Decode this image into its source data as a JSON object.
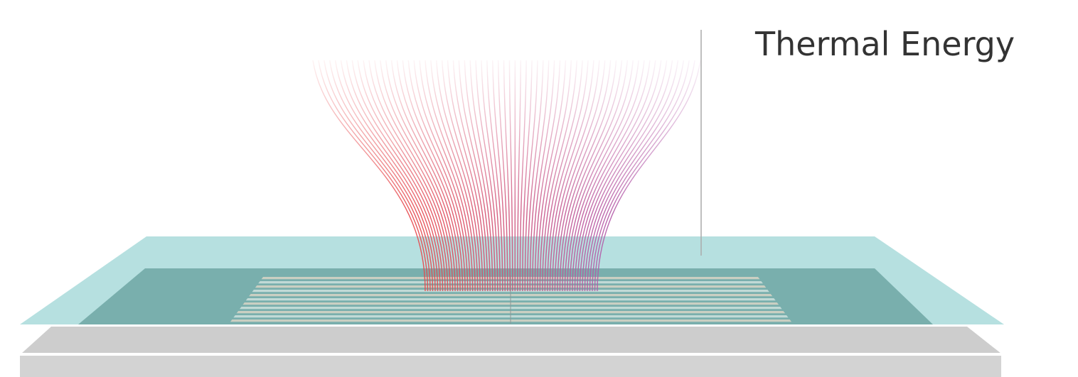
{
  "label": "Thermal Energy",
  "colors": {
    "beam_left": "#e8464a",
    "beam_right": "#b45aa8",
    "glass": "#9ed6d6",
    "glass_dark": "#6ea6a3",
    "base_top": "#cfcfcf",
    "base_front": "#d4d4d4",
    "highlight": "#ffffff",
    "leader_line": "#999999",
    "label": "#333333"
  }
}
